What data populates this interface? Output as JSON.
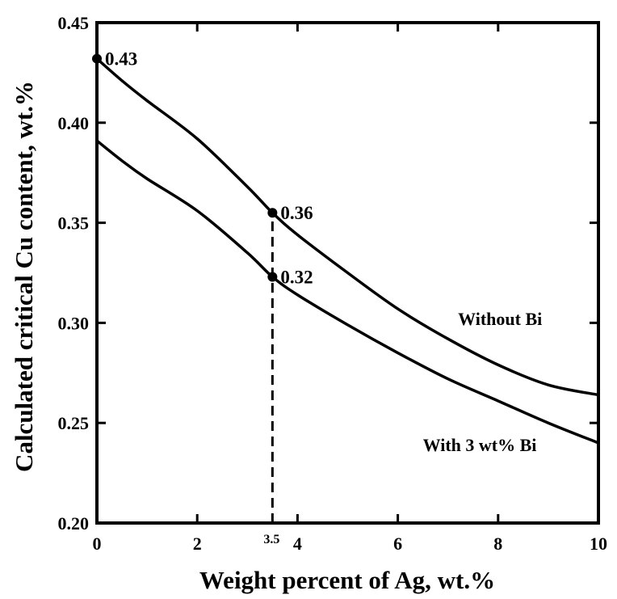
{
  "chart_data": {
    "type": "line",
    "title": "",
    "xlabel": "Weight percent of Ag, wt.%",
    "ylabel": "Calculated critical Cu content, wt.%",
    "xlim": [
      0,
      10
    ],
    "ylim": [
      0.2,
      0.45
    ],
    "xticks": [
      0,
      2,
      4,
      6,
      8,
      10
    ],
    "yticks": [
      0.2,
      0.25,
      0.3,
      0.35,
      0.4,
      0.45
    ],
    "xtick_labels": [
      "0",
      "2",
      "4",
      "6",
      "8",
      "10"
    ],
    "ytick_labels": [
      "0.20",
      "0.25",
      "0.30",
      "0.35",
      "0.40",
      "0.45"
    ],
    "grid": false,
    "series": [
      {
        "name": "Without Bi",
        "x": [
          0,
          0.5,
          1,
          2,
          3,
          3.5,
          4,
          5,
          6,
          7,
          8,
          9,
          10
        ],
        "y": [
          0.432,
          0.421,
          0.411,
          0.392,
          0.368,
          0.355,
          0.344,
          0.325,
          0.307,
          0.292,
          0.279,
          0.269,
          0.264
        ]
      },
      {
        "name": "With 3 wt% Bi",
        "x": [
          0,
          0.5,
          1,
          2,
          3,
          3.5,
          4,
          5,
          6,
          7,
          8,
          9,
          10
        ],
        "y": [
          0.391,
          0.381,
          0.372,
          0.356,
          0.335,
          0.323,
          0.314,
          0.299,
          0.285,
          0.272,
          0.261,
          0.25,
          0.24
        ]
      }
    ],
    "series_labels": [
      {
        "text": "Without Bi",
        "x": 7.2,
        "y": 0.299
      },
      {
        "text": "With 3 wt% Bi",
        "x": 6.5,
        "y": 0.236
      }
    ],
    "markers": [
      {
        "x": 0,
        "y": 0.432,
        "label": "0.43"
      },
      {
        "x": 3.5,
        "y": 0.355,
        "label": "0.36"
      },
      {
        "x": 3.5,
        "y": 0.323,
        "label": "0.32"
      }
    ],
    "reference_line": {
      "x": 3.5,
      "y_from": 0.2,
      "y_to": 0.355,
      "style": "dashed",
      "label": "3.5"
    }
  }
}
